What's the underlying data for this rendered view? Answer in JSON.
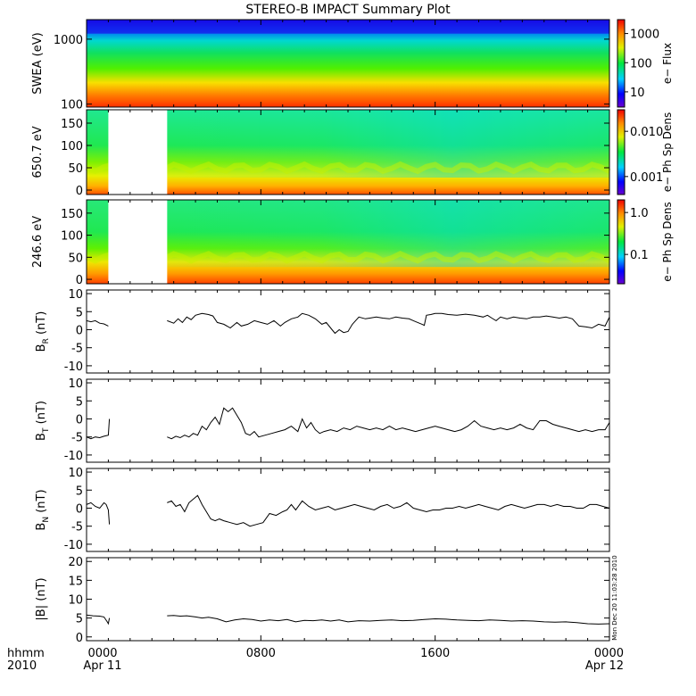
{
  "chart_data": {
    "type": "line",
    "title": "STEREO-B IMPACT Summary Plot",
    "x_axis": {
      "corner_labels": [
        "hhmm",
        "2010"
      ],
      "tick_labels": [
        {
          "hours": 0,
          "time": "0000",
          "date": "Apr 11"
        },
        {
          "hours": 8,
          "time": "0800",
          "date": ""
        },
        {
          "hours": 16,
          "time": "1600",
          "date": ""
        },
        {
          "hours": 24,
          "time": "0000",
          "date": "Apr 12"
        }
      ],
      "range_hours": [
        0,
        24
      ]
    },
    "timestamp_note": "Mon Dec 20 11:03:28 2010",
    "spectrograms": [
      {
        "id": "swea",
        "ylabel": "SWEA (eV)",
        "scale": "log",
        "ylim": [
          90,
          2000
        ],
        "yticks": [
          "100",
          "1000"
        ],
        "colorbar_label": "e− Flux",
        "colorbar_ticks": [
          "10",
          "100",
          "1000"
        ],
        "data_gaps_hours": []
      },
      {
        "id": "pad650",
        "ylabel": "650.7 eV",
        "scale": "linear",
        "ylim": [
          -10,
          180
        ],
        "yticks": [
          "0",
          "50",
          "100",
          "150"
        ],
        "colorbar_label": "e− Ph Sp Dens",
        "colorbar_ticks": [
          "0.001",
          "0.010"
        ],
        "data_gaps_hours": [
          [
            1.0,
            3.7
          ]
        ]
      },
      {
        "id": "pad246",
        "ylabel": "246.6 eV",
        "scale": "linear",
        "ylim": [
          -10,
          180
        ],
        "yticks": [
          "0",
          "50",
          "100",
          "150"
        ],
        "colorbar_label": "e− Ph Sp Dens",
        "colorbar_ticks": [
          "0.1",
          "1.0"
        ],
        "data_gaps_hours": [
          [
            1.0,
            3.7
          ]
        ]
      }
    ],
    "line_panels": [
      {
        "id": "br",
        "ylabel": "B",
        "ylabel_sub": "R",
        "ylabel_unit": "(nT)",
        "ylim": [
          -12,
          11
        ],
        "yticks": [
          "-10",
          "-5",
          "0",
          "5",
          "10"
        ],
        "series": [
          {
            "x": [
              0.0,
              0.2,
              0.4,
              0.6,
              0.8,
              1.0
            ],
            "y": [
              2.5,
              2.2,
              2.5,
              1.8,
              1.6,
              1.0
            ]
          },
          {
            "x": [
              3.7,
              4.0,
              4.2,
              4.4,
              4.6,
              4.8,
              5.0,
              5.3,
              5.6,
              5.8,
              6.0,
              6.3,
              6.6,
              6.9,
              7.1,
              7.4,
              7.7,
              8.0,
              8.3,
              8.6,
              8.9,
              9.1,
              9.4,
              9.7,
              9.9,
              10.2,
              10.5,
              10.8,
              11.0,
              11.2,
              11.4,
              11.6,
              11.8,
              12.0,
              12.2,
              12.5,
              12.8,
              13.0,
              13.3,
              13.6,
              13.9,
              14.2,
              14.5,
              14.8,
              15.0,
              15.2,
              15.4,
              15.5,
              15.6,
              15.8,
              16.0,
              16.3,
              16.6,
              17.0,
              17.4,
              17.8,
              18.2,
              18.4,
              18.6,
              18.8,
              19.0,
              19.3,
              19.6,
              19.9,
              20.2,
              20.5,
              20.8,
              21.1,
              21.4,
              21.7,
              22.0,
              22.3,
              22.6,
              22.9,
              23.2,
              23.5,
              23.8,
              24.0
            ],
            "y": [
              2.5,
              1.8,
              3.0,
              2.0,
              3.5,
              2.8,
              4.0,
              4.5,
              4.2,
              3.8,
              2.0,
              1.5,
              0.5,
              2.0,
              1.0,
              1.5,
              2.5,
              2.0,
              1.5,
              2.5,
              1.0,
              2.0,
              3.0,
              3.5,
              4.5,
              4.0,
              3.0,
              1.5,
              2.0,
              0.5,
              -1.0,
              0.0,
              -0.8,
              -0.5,
              1.5,
              3.5,
              3.0,
              3.2,
              3.5,
              3.2,
              3.0,
              3.5,
              3.2,
              3.0,
              2.5,
              2.0,
              1.5,
              1.2,
              4.0,
              4.2,
              4.5,
              4.5,
              4.2,
              4.0,
              4.3,
              4.0,
              3.5,
              4.0,
              3.2,
              2.5,
              3.5,
              3.0,
              3.5,
              3.2,
              3.0,
              3.5,
              3.5,
              3.8,
              3.5,
              3.2,
              3.5,
              3.0,
              1.0,
              0.8,
              0.5,
              1.5,
              1.0,
              3.5
            ]
          }
        ]
      },
      {
        "id": "bt",
        "ylabel": "B",
        "ylabel_sub": "T",
        "ylabel_unit": "(nT)",
        "ylim": [
          -12,
          11
        ],
        "yticks": [
          "-10",
          "-5",
          "0",
          "5",
          "10"
        ],
        "series": [
          {
            "x": [
              0.0,
              0.2,
              0.4,
              0.6,
              0.8,
              1.0,
              1.05
            ],
            "y": [
              -5.0,
              -5.5,
              -5.0,
              -5.2,
              -4.8,
              -4.5,
              0.0
            ]
          },
          {
            "x": [
              3.7,
              3.9,
              4.1,
              4.3,
              4.5,
              4.7,
              4.9,
              5.1,
              5.3,
              5.5,
              5.7,
              5.9,
              6.1,
              6.3,
              6.5,
              6.7,
              6.9,
              7.1,
              7.3,
              7.5,
              7.7,
              7.9,
              8.2,
              8.5,
              8.8,
              9.1,
              9.4,
              9.7,
              9.9,
              10.1,
              10.3,
              10.5,
              10.7,
              10.9,
              11.2,
              11.5,
              11.8,
              12.1,
              12.4,
              12.7,
              13.0,
              13.3,
              13.6,
              13.9,
              14.2,
              14.5,
              14.8,
              15.1,
              15.4,
              15.7,
              16.0,
              16.3,
              16.6,
              16.9,
              17.2,
              17.5,
              17.8,
              18.1,
              18.4,
              18.7,
              19.0,
              19.3,
              19.6,
              19.9,
              20.2,
              20.5,
              20.8,
              21.1,
              21.4,
              21.7,
              22.0,
              22.3,
              22.6,
              22.9,
              23.2,
              23.5,
              23.8,
              24.0
            ],
            "y": [
              -5.0,
              -5.5,
              -4.8,
              -5.2,
              -4.5,
              -5.0,
              -4.0,
              -4.5,
              -2.0,
              -3.0,
              -1.0,
              0.5,
              -1.5,
              3.0,
              2.0,
              3.0,
              1.0,
              -1.0,
              -4.0,
              -4.5,
              -3.5,
              -5.0,
              -4.5,
              -4.0,
              -3.5,
              -3.0,
              -2.0,
              -3.5,
              0.0,
              -2.5,
              -1.0,
              -3.0,
              -4.0,
              -3.5,
              -3.0,
              -3.5,
              -2.5,
              -3.0,
              -2.0,
              -2.5,
              -3.0,
              -2.5,
              -3.0,
              -2.0,
              -3.0,
              -2.5,
              -3.0,
              -3.5,
              -3.0,
              -2.5,
              -2.0,
              -2.5,
              -3.0,
              -3.5,
              -3.0,
              -2.0,
              -0.5,
              -2.0,
              -2.5,
              -3.0,
              -2.5,
              -3.0,
              -2.5,
              -1.5,
              -2.5,
              -3.0,
              -0.5,
              -0.5,
              -1.5,
              -2.0,
              -2.5,
              -3.0,
              -3.5,
              -3.0,
              -3.5,
              -3.0,
              -3.0,
              -1.0
            ]
          }
        ]
      },
      {
        "id": "bn",
        "ylabel": "B",
        "ylabel_sub": "N",
        "ylabel_unit": "(nT)",
        "ylim": [
          -12,
          11
        ],
        "yticks": [
          "-10",
          "-5",
          "0",
          "5",
          "10"
        ],
        "series": [
          {
            "x": [
              0.0,
              0.2,
              0.4,
              0.6,
              0.8,
              0.9,
              1.0,
              1.05
            ],
            "y": [
              1.0,
              1.5,
              0.5,
              0.0,
              1.5,
              1.0,
              -0.5,
              -4.5
            ]
          },
          {
            "x": [
              3.7,
              3.9,
              4.1,
              4.3,
              4.5,
              4.7,
              4.9,
              5.1,
              5.3,
              5.5,
              5.7,
              5.9,
              6.1,
              6.3,
              6.6,
              6.9,
              7.2,
              7.5,
              7.8,
              8.1,
              8.4,
              8.7,
              9.0,
              9.2,
              9.4,
              9.6,
              9.9,
              10.2,
              10.5,
              10.8,
              11.1,
              11.4,
              11.7,
              12.0,
              12.3,
              12.6,
              12.9,
              13.2,
              13.5,
              13.8,
              14.1,
              14.4,
              14.7,
              15.0,
              15.3,
              15.6,
              15.9,
              16.2,
              16.5,
              16.8,
              17.1,
              17.4,
              17.7,
              18.0,
              18.3,
              18.6,
              18.9,
              19.2,
              19.5,
              19.8,
              20.1,
              20.4,
              20.7,
              21.0,
              21.3,
              21.6,
              21.9,
              22.2,
              22.5,
              22.8,
              23.1,
              23.4,
              23.7,
              24.0
            ],
            "y": [
              1.5,
              2.0,
              0.5,
              1.0,
              -1.0,
              1.5,
              2.5,
              3.5,
              1.0,
              -1.0,
              -3.0,
              -3.5,
              -3.0,
              -3.5,
              -4.0,
              -4.5,
              -4.0,
              -5.0,
              -4.5,
              -4.0,
              -1.5,
              -2.0,
              -1.0,
              -0.5,
              1.0,
              -0.5,
              2.0,
              0.5,
              -0.5,
              0.0,
              0.5,
              -0.5,
              0.0,
              0.5,
              1.0,
              0.5,
              0.0,
              -0.5,
              0.5,
              1.0,
              0.0,
              0.5,
              1.5,
              0.0,
              -0.5,
              -1.0,
              -0.5,
              -0.5,
              0.0,
              0.0,
              0.5,
              0.0,
              0.5,
              1.0,
              0.5,
              0.0,
              -0.5,
              0.5,
              1.0,
              0.5,
              0.0,
              0.5,
              1.0,
              1.0,
              0.5,
              1.0,
              0.5,
              0.5,
              0.0,
              0.0,
              1.0,
              1.0,
              0.5,
              0.0
            ]
          }
        ]
      },
      {
        "id": "bmag",
        "ylabel": "|B|",
        "ylabel_sub": "",
        "ylabel_unit": "(nT)",
        "ylim": [
          -1,
          21
        ],
        "yticks": [
          "0",
          "5",
          "10",
          "15",
          "20"
        ],
        "series": [
          {
            "x": [
              0.0,
              0.3,
              0.6,
              0.8,
              0.95,
              1.0,
              1.05
            ],
            "y": [
              5.8,
              5.6,
              5.5,
              5.3,
              4.0,
              3.5,
              5.0
            ]
          },
          {
            "x": [
              3.7,
              4.0,
              4.3,
              4.6,
              5.0,
              5.3,
              5.6,
              6.0,
              6.4,
              6.8,
              7.2,
              7.6,
              8.0,
              8.4,
              8.8,
              9.2,
              9.6,
              10.0,
              10.4,
              10.8,
              11.2,
              11.6,
              12.0,
              12.5,
              13.0,
              13.5,
              14.0,
              14.5,
              15.0,
              15.5,
              16.0,
              16.5,
              17.0,
              17.5,
              18.0,
              18.5,
              19.0,
              19.5,
              20.0,
              20.5,
              21.0,
              21.5,
              22.0,
              22.5,
              23.0,
              23.5,
              24.0
            ],
            "y": [
              5.6,
              5.7,
              5.5,
              5.6,
              5.3,
              5.0,
              5.2,
              4.8,
              4.0,
              4.5,
              4.8,
              4.6,
              4.2,
              4.5,
              4.3,
              4.6,
              4.0,
              4.4,
              4.3,
              4.5,
              4.2,
              4.5,
              4.0,
              4.3,
              4.2,
              4.4,
              4.5,
              4.3,
              4.4,
              4.6,
              4.8,
              4.7,
              4.5,
              4.4,
              4.3,
              4.5,
              4.4,
              4.2,
              4.3,
              4.2,
              4.0,
              3.9,
              4.0,
              3.8,
              3.5,
              3.4,
              3.5
            ]
          }
        ]
      }
    ]
  }
}
